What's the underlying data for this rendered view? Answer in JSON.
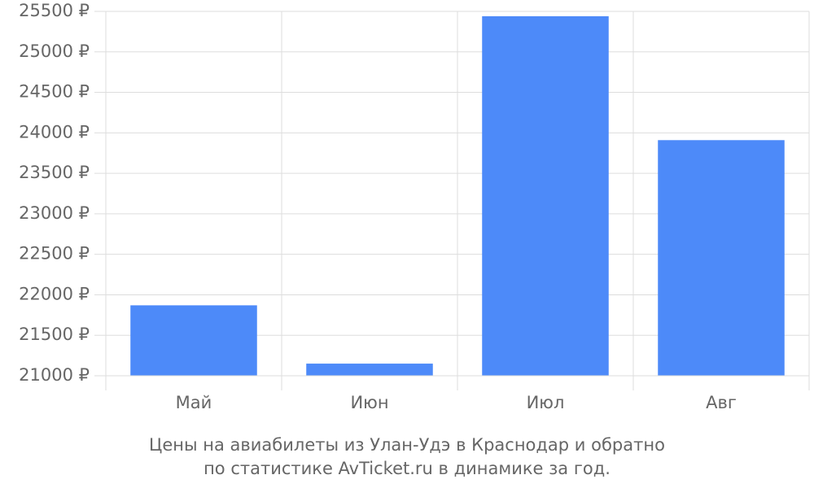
{
  "chart_data": {
    "type": "bar",
    "title": [
      "Цены на авиабилеты из Улан-Удэ в Краснодар и обратно",
      "по статистике AvTicket.ru в динамике за год."
    ],
    "categories": [
      "Май",
      "Июн",
      "Июл",
      "Авг"
    ],
    "values": [
      21870,
      21150,
      25440,
      23910
    ],
    "color": "#4d8af9",
    "ylim": [
      21000,
      25500
    ],
    "yticks": [
      {
        "value": 21000,
        "label": "21000 ₽"
      },
      {
        "value": 21500,
        "label": "21500 ₽"
      },
      {
        "value": 22000,
        "label": "22000 ₽"
      },
      {
        "value": 22500,
        "label": "22500 ₽"
      },
      {
        "value": 23000,
        "label": "23000 ₽"
      },
      {
        "value": 23500,
        "label": "23500 ₽"
      },
      {
        "value": 24000,
        "label": "24000 ₽"
      },
      {
        "value": 24500,
        "label": "24500 ₽"
      },
      {
        "value": 25000,
        "label": "25000 ₽"
      },
      {
        "value": 25500,
        "label": "25500 ₽"
      }
    ],
    "grid": true
  }
}
